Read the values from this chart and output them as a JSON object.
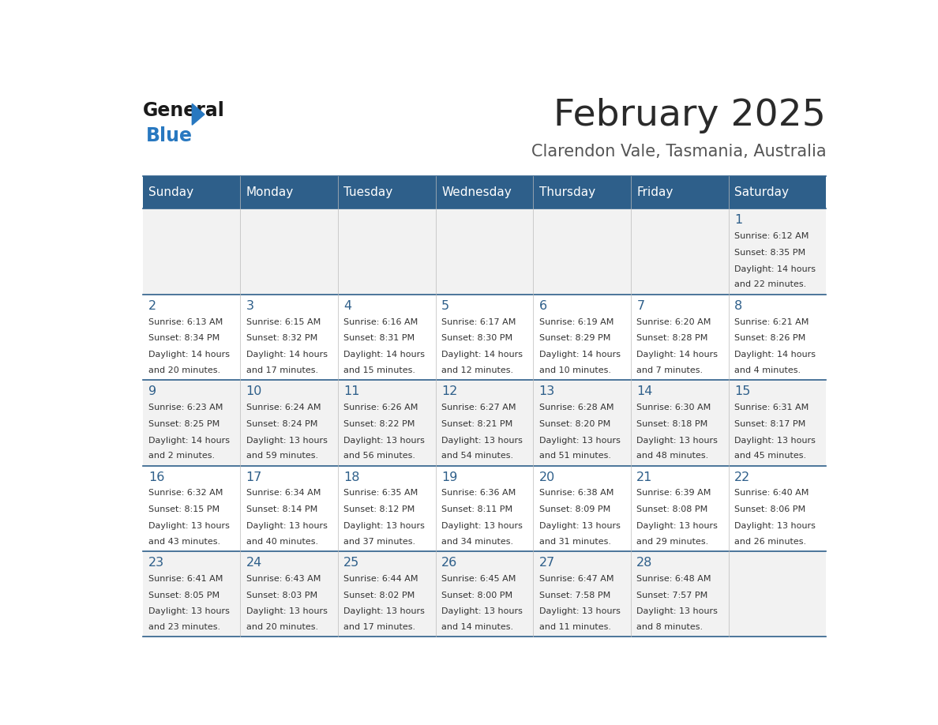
{
  "title": "February 2025",
  "subtitle": "Clarendon Vale, Tasmania, Australia",
  "header_bg": "#2E5F8A",
  "header_text": "#FFFFFF",
  "row_bg_light": "#F2F2F2",
  "row_bg_white": "#FFFFFF",
  "cell_border": "#2E5F8A",
  "day_headers": [
    "Sunday",
    "Monday",
    "Tuesday",
    "Wednesday",
    "Thursday",
    "Friday",
    "Saturday"
  ],
  "days": [
    {
      "day": 1,
      "col": 6,
      "row": 0,
      "sunrise": "6:12 AM",
      "sunset": "8:35 PM",
      "daylight_h": "14 hours",
      "daylight_m": "22 minutes."
    },
    {
      "day": 2,
      "col": 0,
      "row": 1,
      "sunrise": "6:13 AM",
      "sunset": "8:34 PM",
      "daylight_h": "14 hours",
      "daylight_m": "20 minutes."
    },
    {
      "day": 3,
      "col": 1,
      "row": 1,
      "sunrise": "6:15 AM",
      "sunset": "8:32 PM",
      "daylight_h": "14 hours",
      "daylight_m": "17 minutes."
    },
    {
      "day": 4,
      "col": 2,
      "row": 1,
      "sunrise": "6:16 AM",
      "sunset": "8:31 PM",
      "daylight_h": "14 hours",
      "daylight_m": "15 minutes."
    },
    {
      "day": 5,
      "col": 3,
      "row": 1,
      "sunrise": "6:17 AM",
      "sunset": "8:30 PM",
      "daylight_h": "14 hours",
      "daylight_m": "12 minutes."
    },
    {
      "day": 6,
      "col": 4,
      "row": 1,
      "sunrise": "6:19 AM",
      "sunset": "8:29 PM",
      "daylight_h": "14 hours",
      "daylight_m": "10 minutes."
    },
    {
      "day": 7,
      "col": 5,
      "row": 1,
      "sunrise": "6:20 AM",
      "sunset": "8:28 PM",
      "daylight_h": "14 hours",
      "daylight_m": "7 minutes."
    },
    {
      "day": 8,
      "col": 6,
      "row": 1,
      "sunrise": "6:21 AM",
      "sunset": "8:26 PM",
      "daylight_h": "14 hours",
      "daylight_m": "4 minutes."
    },
    {
      "day": 9,
      "col": 0,
      "row": 2,
      "sunrise": "6:23 AM",
      "sunset": "8:25 PM",
      "daylight_h": "14 hours",
      "daylight_m": "2 minutes."
    },
    {
      "day": 10,
      "col": 1,
      "row": 2,
      "sunrise": "6:24 AM",
      "sunset": "8:24 PM",
      "daylight_h": "13 hours",
      "daylight_m": "59 minutes."
    },
    {
      "day": 11,
      "col": 2,
      "row": 2,
      "sunrise": "6:26 AM",
      "sunset": "8:22 PM",
      "daylight_h": "13 hours",
      "daylight_m": "56 minutes."
    },
    {
      "day": 12,
      "col": 3,
      "row": 2,
      "sunrise": "6:27 AM",
      "sunset": "8:21 PM",
      "daylight_h": "13 hours",
      "daylight_m": "54 minutes."
    },
    {
      "day": 13,
      "col": 4,
      "row": 2,
      "sunrise": "6:28 AM",
      "sunset": "8:20 PM",
      "daylight_h": "13 hours",
      "daylight_m": "51 minutes."
    },
    {
      "day": 14,
      "col": 5,
      "row": 2,
      "sunrise": "6:30 AM",
      "sunset": "8:18 PM",
      "daylight_h": "13 hours",
      "daylight_m": "48 minutes."
    },
    {
      "day": 15,
      "col": 6,
      "row": 2,
      "sunrise": "6:31 AM",
      "sunset": "8:17 PM",
      "daylight_h": "13 hours",
      "daylight_m": "45 minutes."
    },
    {
      "day": 16,
      "col": 0,
      "row": 3,
      "sunrise": "6:32 AM",
      "sunset": "8:15 PM",
      "daylight_h": "13 hours",
      "daylight_m": "43 minutes."
    },
    {
      "day": 17,
      "col": 1,
      "row": 3,
      "sunrise": "6:34 AM",
      "sunset": "8:14 PM",
      "daylight_h": "13 hours",
      "daylight_m": "40 minutes."
    },
    {
      "day": 18,
      "col": 2,
      "row": 3,
      "sunrise": "6:35 AM",
      "sunset": "8:12 PM",
      "daylight_h": "13 hours",
      "daylight_m": "37 minutes."
    },
    {
      "day": 19,
      "col": 3,
      "row": 3,
      "sunrise": "6:36 AM",
      "sunset": "8:11 PM",
      "daylight_h": "13 hours",
      "daylight_m": "34 minutes."
    },
    {
      "day": 20,
      "col": 4,
      "row": 3,
      "sunrise": "6:38 AM",
      "sunset": "8:09 PM",
      "daylight_h": "13 hours",
      "daylight_m": "31 minutes."
    },
    {
      "day": 21,
      "col": 5,
      "row": 3,
      "sunrise": "6:39 AM",
      "sunset": "8:08 PM",
      "daylight_h": "13 hours",
      "daylight_m": "29 minutes."
    },
    {
      "day": 22,
      "col": 6,
      "row": 3,
      "sunrise": "6:40 AM",
      "sunset": "8:06 PM",
      "daylight_h": "13 hours",
      "daylight_m": "26 minutes."
    },
    {
      "day": 23,
      "col": 0,
      "row": 4,
      "sunrise": "6:41 AM",
      "sunset": "8:05 PM",
      "daylight_h": "13 hours",
      "daylight_m": "23 minutes."
    },
    {
      "day": 24,
      "col": 1,
      "row": 4,
      "sunrise": "6:43 AM",
      "sunset": "8:03 PM",
      "daylight_h": "13 hours",
      "daylight_m": "20 minutes."
    },
    {
      "day": 25,
      "col": 2,
      "row": 4,
      "sunrise": "6:44 AM",
      "sunset": "8:02 PM",
      "daylight_h": "13 hours",
      "daylight_m": "17 minutes."
    },
    {
      "day": 26,
      "col": 3,
      "row": 4,
      "sunrise": "6:45 AM",
      "sunset": "8:00 PM",
      "daylight_h": "13 hours",
      "daylight_m": "14 minutes."
    },
    {
      "day": 27,
      "col": 4,
      "row": 4,
      "sunrise": "6:47 AM",
      "sunset": "7:58 PM",
      "daylight_h": "13 hours",
      "daylight_m": "11 minutes."
    },
    {
      "day": 28,
      "col": 5,
      "row": 4,
      "sunrise": "6:48 AM",
      "sunset": "7:57 PM",
      "daylight_h": "13 hours",
      "daylight_m": "8 minutes."
    }
  ],
  "num_rows": 5,
  "num_cols": 7,
  "logo_text_general": "General",
  "logo_text_blue": "Blue",
  "logo_color_general": "#1a1a1a",
  "logo_color_blue": "#2878C0",
  "logo_triangle_color": "#2878C0",
  "title_color": "#2a2a2a",
  "subtitle_color": "#555555",
  "day_number_color": "#2E5F8A",
  "cell_text_color": "#333333"
}
